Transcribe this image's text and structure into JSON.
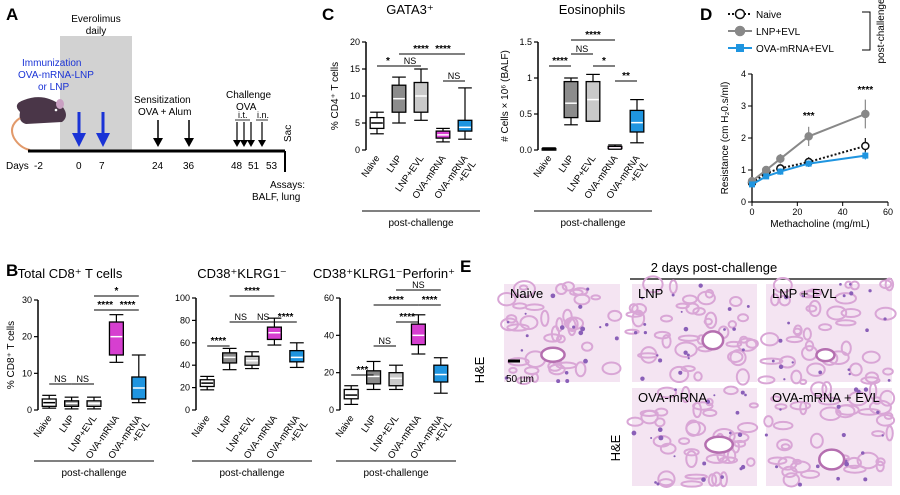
{
  "panels": {
    "A": {
      "letter": "A",
      "everolimus": [
        "Everolimus",
        "daily"
      ],
      "immunization": [
        "Immunization",
        "OVA-mRNA-LNP",
        "or LNP"
      ],
      "sensitization": [
        "Sensitization",
        "OVA + Alum"
      ],
      "challenge": [
        "Challenge",
        "OVA"
      ],
      "it": "i.t.",
      "in": "i.n.",
      "sac": "Sac",
      "days_label": "Days",
      "days": [
        "-2",
        "0",
        "7",
        "24",
        "36",
        "48",
        "51",
        "53"
      ],
      "assays": [
        "Assays:",
        "BALF, lung"
      ]
    },
    "B": {
      "letter": "B"
    },
    "C": {
      "letter": "C"
    },
    "D": {
      "letter": "D"
    },
    "E": {
      "letter": "E",
      "header": "2 days post-challenge",
      "he": "H&E",
      "scale": "50 µm",
      "images": [
        "Naive",
        "LNP",
        "LNP + EVL",
        "OVA-mRNA",
        "OVA-mRNA + EVL"
      ]
    }
  },
  "colors": {
    "naive": "#ffffff",
    "lnp": "#8c8c8c",
    "lnp_evl": "#c9c9c9",
    "ova": "#d63fd0",
    "ova_evl": "#1f95e0",
    "d_naive": "#111111",
    "d_lnp": "#888888",
    "d_ova": "#1f95e0",
    "text_blue": "#1a33d6",
    "tissue": "#d9a6d6",
    "nuclei": "#8a5fb8"
  },
  "icons": [
    "mouse-icon",
    "arrow-down-icon"
  ],
  "chart_data": [
    {
      "id": "C1",
      "type": "box",
      "title": "GATA3⁺",
      "ylabel": "% CD4⁺ T cells",
      "xlabel": "post-challenge",
      "categories": [
        "Naive",
        "LNP",
        "LNP+EVL",
        "OVA-mRNA",
        "OVA-mRNA +EVL"
      ],
      "ylim": [
        0,
        20
      ],
      "yticks": [
        0,
        5,
        10,
        15,
        20
      ],
      "boxes": [
        {
          "min": 3,
          "q1": 4,
          "med": 5,
          "q3": 6,
          "max": 7
        },
        {
          "min": 5,
          "q1": 7,
          "med": 9.5,
          "q3": 12,
          "max": 13.5
        },
        {
          "min": 5.5,
          "q1": 7,
          "med": 10,
          "q3": 12.5,
          "max": 15
        },
        {
          "min": 1.5,
          "q1": 2.2,
          "med": 2.8,
          "q3": 3.5,
          "max": 4
        },
        {
          "min": 2,
          "q1": 3.5,
          "med": 4.2,
          "q3": 5.5,
          "max": 11.5
        }
      ],
      "significance": [
        {
          "from": 0,
          "to": 1,
          "label": "*"
        },
        {
          "from": 1,
          "to": 3,
          "label": "****"
        },
        {
          "from": 1,
          "to": 2,
          "label": "NS"
        },
        {
          "from": 2,
          "to": 4,
          "label": "****"
        },
        {
          "from": 3,
          "to": 4,
          "label": "NS"
        }
      ]
    },
    {
      "id": "C2",
      "type": "box",
      "title": "Eosinophils",
      "ylabel": "# Cells × 10⁶ (BALF)",
      "xlabel": "post-challenge",
      "categories": [
        "Naive",
        "LNP",
        "LNP+EVL",
        "OVA-mRNA",
        "OVA-mRNA +EVL"
      ],
      "ylim": [
        0,
        1.5
      ],
      "yticks": [
        0.0,
        0.5,
        1.0,
        1.5
      ],
      "boxes": [
        {
          "min": 0,
          "q1": 0,
          "med": 0.01,
          "q3": 0.02,
          "max": 0.03
        },
        {
          "min": 0.35,
          "q1": 0.45,
          "med": 0.65,
          "q3": 0.95,
          "max": 1.0
        },
        {
          "min": 0.4,
          "q1": 0.4,
          "med": 0.7,
          "q3": 0.95,
          "max": 1.05
        },
        {
          "min": 0.01,
          "q1": 0.02,
          "med": 0.03,
          "q3": 0.05,
          "max": 0.07
        },
        {
          "min": 0.1,
          "q1": 0.25,
          "med": 0.38,
          "q3": 0.55,
          "max": 0.7
        }
      ],
      "significance": [
        {
          "from": 0,
          "to": 1,
          "label": "****"
        },
        {
          "from": 1,
          "to": 2,
          "label": "NS"
        },
        {
          "from": 2,
          "to": 3,
          "label": "*"
        },
        {
          "from": 1,
          "to": 3,
          "label": "****"
        },
        {
          "from": 3,
          "to": 4,
          "label": "**"
        }
      ]
    },
    {
      "id": "D",
      "type": "line",
      "xlabel": "Methacholine (mg/mL)",
      "ylabel": "Resistance (cm H₂0.s/ml)",
      "xlim": [
        0,
        60
      ],
      "xticks": [
        0,
        20,
        40,
        60
      ],
      "ylim": [
        0,
        4
      ],
      "yticks": [
        0,
        1,
        2,
        3,
        4
      ],
      "x": [
        0,
        6.25,
        12.5,
        25,
        50
      ],
      "series": [
        {
          "name": "Naive",
          "values": [
            0.6,
            0.9,
            1.05,
            1.25,
            1.75
          ],
          "err": [
            0.05,
            0.1,
            0.1,
            0.15,
            0.25
          ]
        },
        {
          "name": "LNP+EVL",
          "values": [
            0.65,
            1.0,
            1.35,
            2.05,
            2.75
          ],
          "err": [
            0.05,
            0.1,
            0.15,
            0.3,
            0.45
          ]
        },
        {
          "name": "OVA-mRNA+EVL",
          "values": [
            0.55,
            0.8,
            0.95,
            1.2,
            1.45
          ],
          "err": [
            0.05,
            0.05,
            0.1,
            0.1,
            0.12
          ]
        }
      ],
      "legend_side": "post-challenge",
      "annotations": [
        {
          "x": 25,
          "label": "***"
        },
        {
          "x": 50,
          "label": "****"
        }
      ]
    },
    {
      "id": "B1",
      "type": "box",
      "title": "Total CD8⁺ T cells",
      "ylabel": "% CD8⁺ T cells",
      "xlabel": "post-challenge",
      "categories": [
        "Naive",
        "LNP",
        "LNP+EVL",
        "OVA-mRNA",
        "OVA-mRNA +EVL"
      ],
      "ylim": [
        0,
        30
      ],
      "yticks": [
        0,
        10,
        20,
        30
      ],
      "boxes": [
        {
          "min": 0.5,
          "q1": 1,
          "med": 2,
          "q3": 3,
          "max": 4
        },
        {
          "min": 0.3,
          "q1": 1,
          "med": 1.8,
          "q3": 2.5,
          "max": 3.5
        },
        {
          "min": 0.3,
          "q1": 1,
          "med": 1.8,
          "q3": 2.5,
          "max": 3.5
        },
        {
          "min": 13,
          "q1": 15,
          "med": 20,
          "q3": 24,
          "max": 26
        },
        {
          "min": 2,
          "q1": 3,
          "med": 6,
          "q3": 9,
          "max": 15
        }
      ],
      "significance": [
        {
          "from": 0,
          "to": 1,
          "label": "NS"
        },
        {
          "from": 1,
          "to": 2,
          "label": "NS"
        },
        {
          "from": 2,
          "to": 3,
          "label": "****"
        },
        {
          "from": 3,
          "to": 4,
          "label": "****"
        },
        {
          "from": 2,
          "to": 4,
          "label": "*"
        }
      ]
    },
    {
      "id": "B2",
      "type": "box",
      "title": "CD38⁺KLRG1⁻",
      "xlabel": "post-challenge",
      "categories": [
        "Naive",
        "LNP",
        "LNP+EVL",
        "OVA-mRNA",
        "OVA-mRNA +EVL"
      ],
      "ylim": [
        0,
        100
      ],
      "yticks": [
        0,
        20,
        40,
        60,
        80,
        100
      ],
      "boxes": [
        {
          "min": 18,
          "q1": 21,
          "med": 24,
          "q3": 27,
          "max": 30
        },
        {
          "min": 36,
          "q1": 42,
          "med": 47,
          "q3": 51,
          "max": 55
        },
        {
          "min": 37,
          "q1": 40,
          "med": 44,
          "q3": 48,
          "max": 52
        },
        {
          "min": 58,
          "q1": 63,
          "med": 69,
          "q3": 74,
          "max": 82
        },
        {
          "min": 38,
          "q1": 43,
          "med": 47,
          "q3": 53,
          "max": 60
        }
      ],
      "significance": [
        {
          "from": 0,
          "to": 1,
          "label": "****"
        },
        {
          "from": 1,
          "to": 2,
          "label": "NS"
        },
        {
          "from": 2,
          "to": 3,
          "label": "NS"
        },
        {
          "from": 1,
          "to": 3,
          "label": "****"
        },
        {
          "from": 3,
          "to": 4,
          "label": "****"
        }
      ]
    },
    {
      "id": "B3",
      "type": "box",
      "title": "CD38⁺KLRG1⁻Perforin⁺",
      "xlabel": "post-challenge",
      "categories": [
        "Naive",
        "LNP",
        "LNP+EVL",
        "OVA-mRNA",
        "OVA-mRNA +EVL"
      ],
      "ylim": [
        0,
        60
      ],
      "yticks": [
        0,
        20,
        40,
        60
      ],
      "boxes": [
        {
          "min": 3,
          "q1": 6,
          "med": 8,
          "q3": 11,
          "max": 13
        },
        {
          "min": 11,
          "q1": 14,
          "med": 18,
          "q3": 21,
          "max": 26
        },
        {
          "min": 11,
          "q1": 13,
          "med": 17,
          "q3": 20,
          "max": 24
        },
        {
          "min": 30,
          "q1": 35,
          "med": 40,
          "q3": 46,
          "max": 51
        },
        {
          "min": 9,
          "q1": 15,
          "med": 19,
          "q3": 24,
          "max": 28
        }
      ],
      "significance": [
        {
          "from": 0,
          "to": 1,
          "label": "***"
        },
        {
          "from": 1,
          "to": 2,
          "label": "NS"
        },
        {
          "from": 2,
          "to": 3,
          "label": "****"
        },
        {
          "from": 1,
          "to": 3,
          "label": "****"
        },
        {
          "from": 3,
          "to": 4,
          "label": "****"
        },
        {
          "from": 2,
          "to": 4,
          "label": "NS"
        }
      ]
    }
  ]
}
